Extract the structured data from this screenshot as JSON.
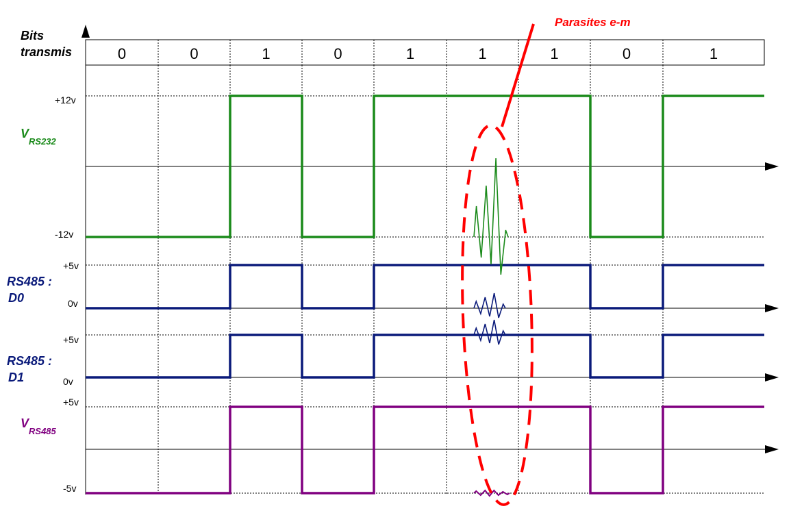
{
  "header": {
    "bits_label_line1": "Bits",
    "bits_label_line2": "transmis",
    "bits": [
      "0",
      "0",
      "1",
      "0",
      "1",
      "1",
      "1",
      "0",
      "1"
    ]
  },
  "signals": {
    "vrs232": {
      "name": "V",
      "subscript": "RS232",
      "high_label": "+12v",
      "low_label": "-12v",
      "color": "#1a8a1a"
    },
    "d0": {
      "name_line1": "RS485 :",
      "name_line2": "D0",
      "high_label": "+5v",
      "low_label": "0v",
      "color": "#0a1a7a"
    },
    "d1": {
      "name_line1": "RS485 :",
      "name_line2": "D1",
      "high_label": "+5v",
      "low_label": "0v",
      "color": "#0a1a7a"
    },
    "vrs485": {
      "name": "V",
      "subscript": "RS485",
      "high_label": "+5v",
      "low_label": "-5v",
      "color": "#800080"
    }
  },
  "annotation": {
    "label": "Parasites e-m",
    "color": "#ff0000"
  }
}
